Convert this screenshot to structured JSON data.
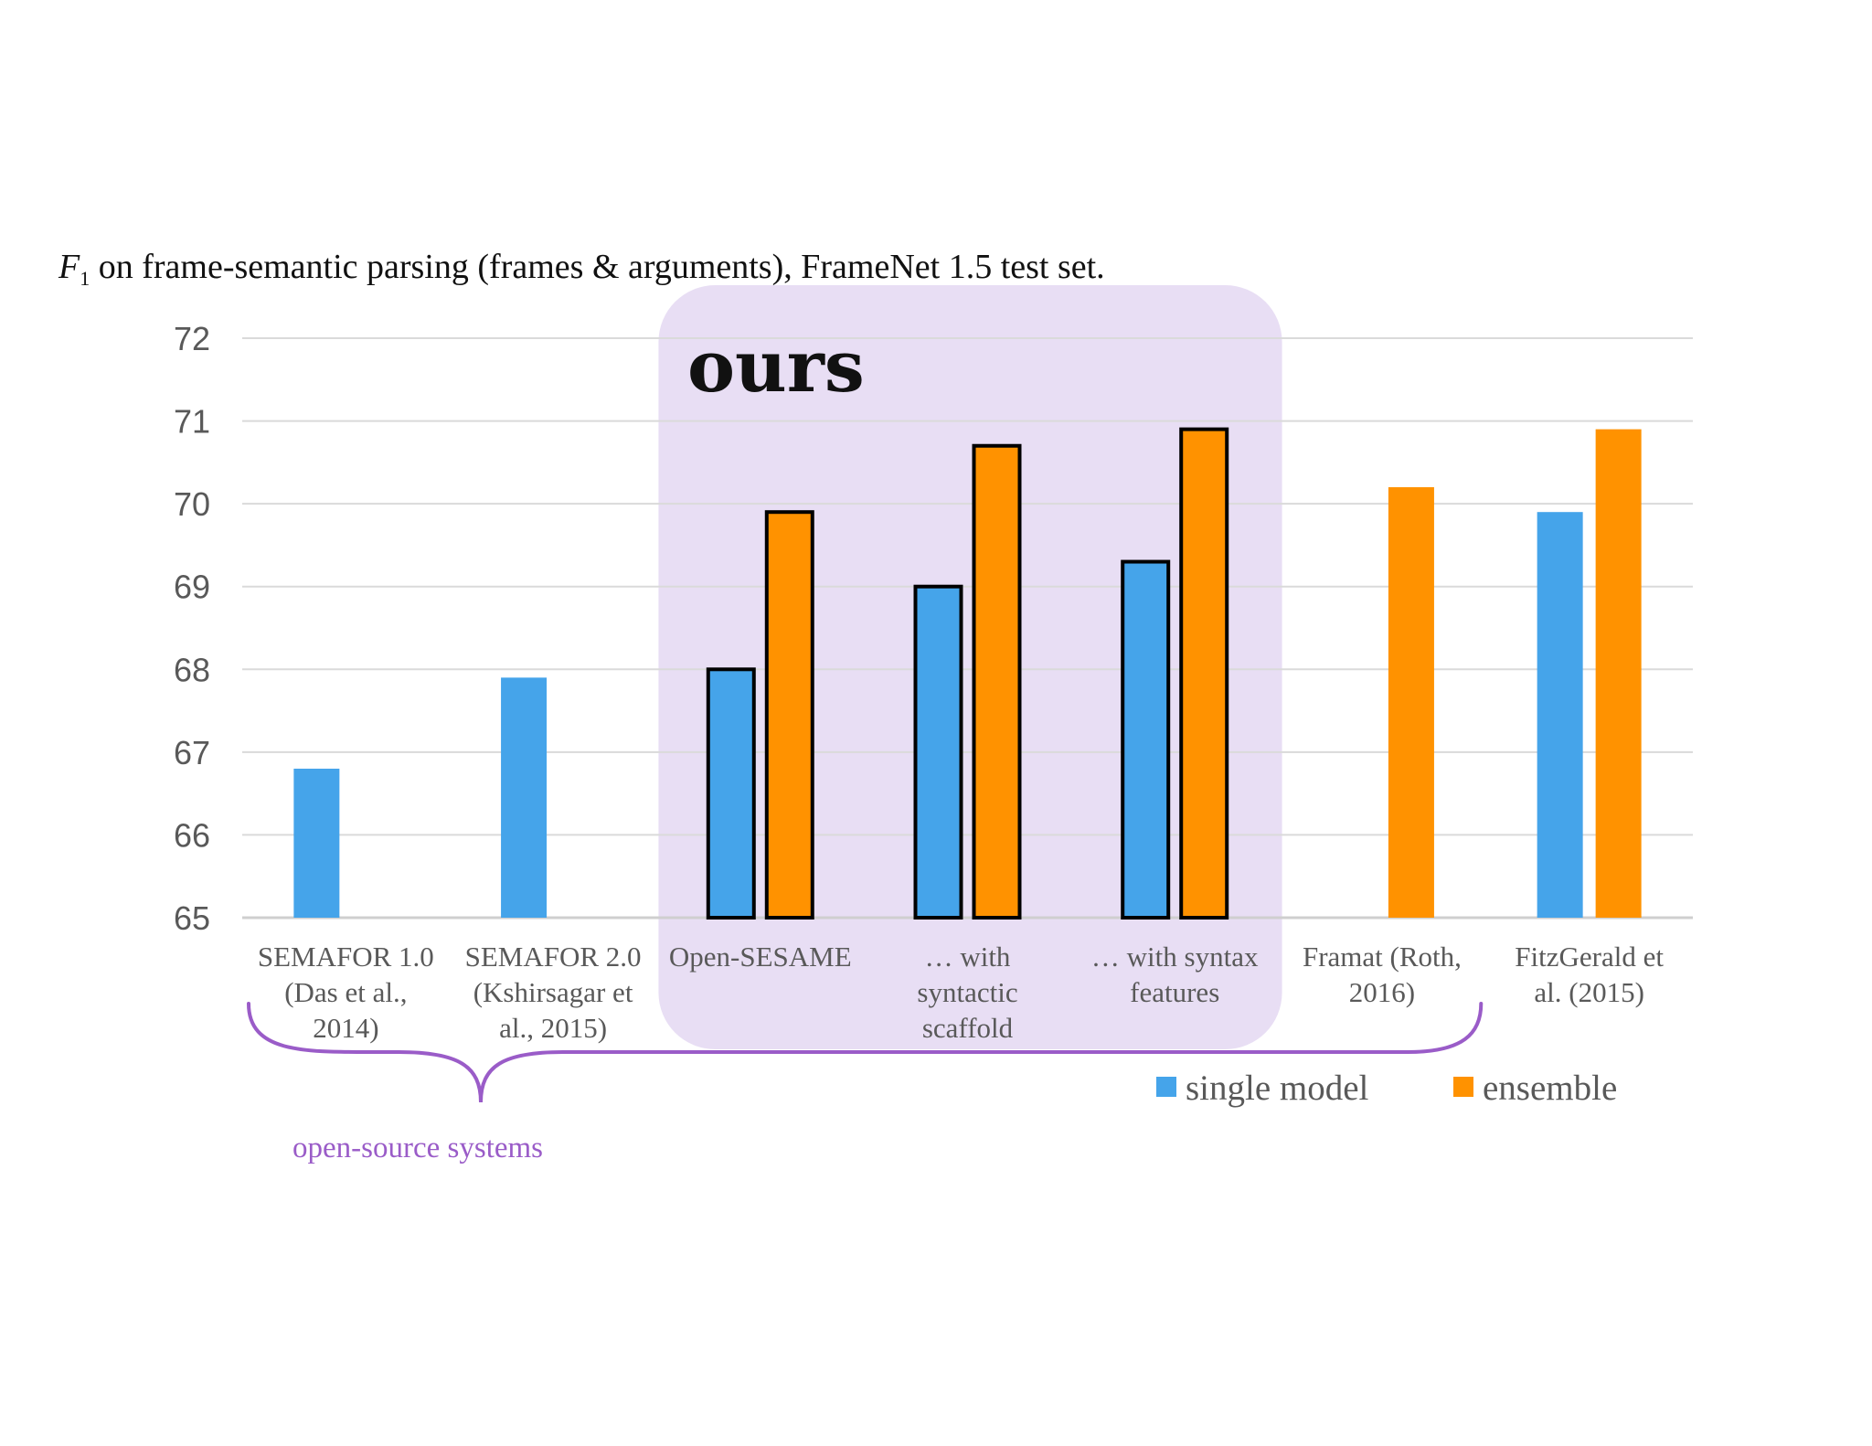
{
  "chart_data": {
    "type": "bar",
    "title_var": "F",
    "title_sub": "1",
    "title": " on frame-semantic parsing (frames & arguments), FrameNet 1.5 test set.",
    "xlabel": "",
    "ylabel": "",
    "ylim": [
      65,
      72
    ],
    "yticks": [
      65,
      66,
      67,
      68,
      69,
      70,
      71,
      72
    ],
    "grid": true,
    "legend_position": "bottom-right",
    "categories": [
      [
        "SEMAFOR 1.0",
        "(Das et al.,",
        "2014)"
      ],
      [
        "SEMAFOR 2.0",
        "(Kshirsagar et",
        "al., 2015)"
      ],
      [
        "Open-SESAME"
      ],
      [
        "… with",
        "syntactic",
        "scaffold"
      ],
      [
        "… with syntax",
        "features"
      ],
      [
        "Framat (Roth,",
        "2016)"
      ],
      [
        "FitzGerald et",
        "al. (2015)"
      ]
    ],
    "series": [
      {
        "name": "single model",
        "color": "#45A4EA",
        "values": [
          66.8,
          67.9,
          68.0,
          69.0,
          69.3,
          null,
          69.9
        ]
      },
      {
        "name": "ensemble",
        "color": "#FF9200",
        "values": [
          null,
          null,
          69.9,
          70.7,
          70.9,
          70.2,
          70.9
        ]
      }
    ],
    "highlight": {
      "label": "ours",
      "categories": [
        2,
        3,
        4
      ],
      "color": "#E8DEF4"
    },
    "annotations": [
      {
        "text": "open-source  systems",
        "color": "#9A5CC8",
        "spans_categories": [
          0,
          5
        ]
      }
    ]
  }
}
